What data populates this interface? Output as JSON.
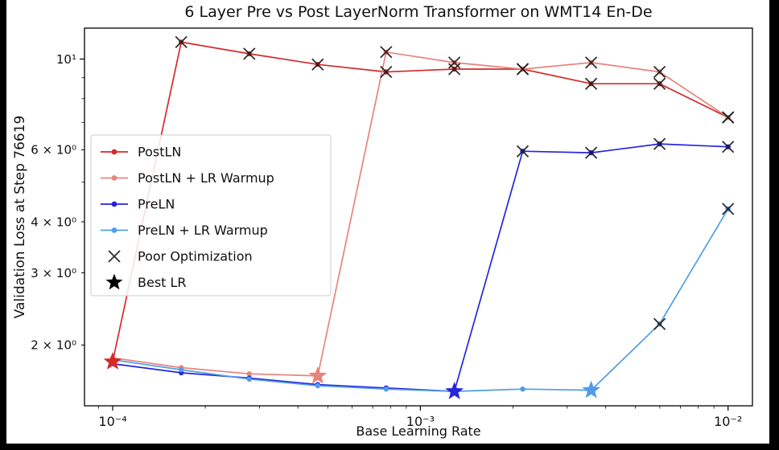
{
  "chart_data": {
    "type": "line",
    "title": "6 Layer Pre vs Post LayerNorm Transformer on WMT14 En-De",
    "xlabel": "Base Learning Rate",
    "ylabel": "Validation Loss at Step 76619",
    "x_scale": "log",
    "y_scale": "log",
    "xlim": [
      8.1e-05,
      0.012
    ],
    "ylim": [
      1.42,
      11.9
    ],
    "x": [
      0.0001,
      0.000167,
      0.000278,
      0.000464,
      0.000774,
      0.00129,
      0.00215,
      0.00359,
      0.00599,
      0.01
    ],
    "x_ticks": [
      {
        "value": 0.0001,
        "label": "10⁻⁴"
      },
      {
        "value": 0.001,
        "label": "10⁻³"
      },
      {
        "value": 0.01,
        "label": "10⁻²"
      }
    ],
    "y_ticks": [
      {
        "value": 10,
        "label": "10¹"
      },
      {
        "value": 6,
        "label": "6 × 10⁰"
      },
      {
        "value": 4,
        "label": "4 × 10⁰"
      },
      {
        "value": 3,
        "label": "3 × 10⁰"
      },
      {
        "value": 2,
        "label": "2 × 10⁰"
      }
    ],
    "series": [
      {
        "name": "PostLN",
        "color": "#d42a2a",
        "values": [
          1.82,
          11.0,
          10.3,
          9.7,
          9.3,
          9.45,
          9.45,
          8.7,
          8.7,
          7.2
        ],
        "poor_optimization_indices": [
          1,
          2,
          3,
          4,
          5,
          6,
          7,
          8,
          9
        ],
        "best_lr_index": 0
      },
      {
        "name": "PostLN + LR Warmup",
        "color": "#e8847c",
        "values": [
          1.86,
          1.76,
          1.7,
          1.68,
          10.4,
          9.8,
          9.45,
          9.8,
          9.3,
          7.2
        ],
        "poor_optimization_indices": [
          4,
          5,
          6,
          7,
          8,
          9
        ],
        "best_lr_index": 3
      },
      {
        "name": "PreLN",
        "color": "#2525dd",
        "values": [
          1.8,
          1.71,
          1.66,
          1.6,
          1.57,
          1.54,
          5.95,
          5.9,
          6.2,
          6.1
        ],
        "poor_optimization_indices": [
          6,
          7,
          8,
          9
        ],
        "best_lr_index": 5
      },
      {
        "name": "PreLN + LR Warmup",
        "color": "#4f9de8",
        "values": [
          1.84,
          1.74,
          1.65,
          1.59,
          1.56,
          1.54,
          1.56,
          1.55,
          2.25,
          4.3
        ],
        "poor_optimization_indices": [
          8,
          9
        ],
        "best_lr_index": 7
      }
    ],
    "legend": {
      "position": "upper left",
      "items": [
        {
          "label": "PostLN",
          "type": "line",
          "color": "#d42a2a"
        },
        {
          "label": "PostLN + LR Warmup",
          "type": "line",
          "color": "#e8847c"
        },
        {
          "label": "PreLN",
          "type": "line",
          "color": "#2525dd"
        },
        {
          "label": "PreLN + LR Warmup",
          "type": "line",
          "color": "#4f9de8"
        },
        {
          "label": "Poor Optimization",
          "type": "x-marker",
          "color": "#1c1c1c"
        },
        {
          "label": "Best LR",
          "type": "star-marker",
          "color": "#000000"
        }
      ]
    },
    "axis_color": "#000000",
    "background": "#ffffff"
  }
}
